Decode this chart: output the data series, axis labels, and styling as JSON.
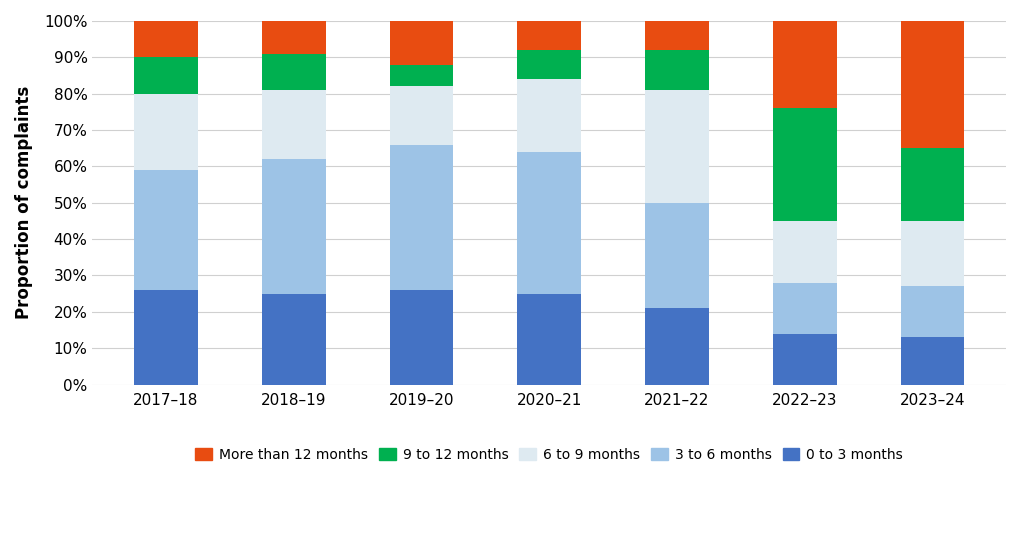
{
  "categories": [
    "2017–18",
    "2018–19",
    "2019–20",
    "2020–21",
    "2021–22",
    "2022–23",
    "2023–24"
  ],
  "series": {
    "0 to 3 months": [
      26,
      25,
      26,
      25,
      21,
      14,
      13
    ],
    "3 to 6 months": [
      33,
      37,
      40,
      39,
      29,
      14,
      14
    ],
    "6 to 9 months": [
      21,
      19,
      16,
      20,
      31,
      17,
      18
    ],
    "9 to 12 months": [
      10,
      10,
      6,
      8,
      11,
      31,
      20
    ],
    "More than 12 months": [
      10,
      9,
      12,
      8,
      8,
      24,
      35
    ]
  },
  "colors": {
    "0 to 3 months": "#4472C4",
    "3 to 6 months": "#9DC3E6",
    "6 to 9 months": "#DEEAF1",
    "9 to 12 months": "#00B050",
    "More than 12 months": "#E84C11"
  },
  "legend_order": [
    "More than 12 months",
    "9 to 12 months",
    "6 to 9 months",
    "3 to 6 months",
    "0 to 3 months"
  ],
  "ylabel": "Proportion of complaints",
  "ylim": [
    0,
    100
  ],
  "ytick_labels": [
    "0%",
    "10%",
    "20%",
    "30%",
    "40%",
    "50%",
    "60%",
    "70%",
    "80%",
    "90%",
    "100%"
  ],
  "background_color": "#FFFFFF",
  "grid_color": "#D0D0D0",
  "bar_width": 0.5
}
